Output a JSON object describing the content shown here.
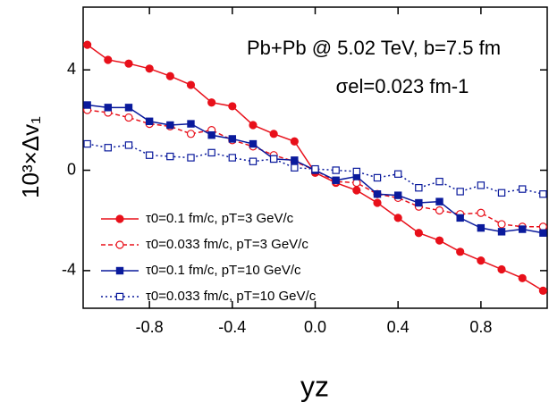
{
  "chart_data": {
    "type": "line",
    "annotations": [
      "Pb+Pb @ 5.02 TeV, b=7.5 fm",
      "σel=0.023 fm-1"
    ],
    "x_label": "yz",
    "y_label": "10³×Δv₁",
    "x": [
      -1.1,
      -1.0,
      -0.9,
      -0.8,
      -0.7,
      -0.6,
      -0.5,
      -0.4,
      -0.3,
      -0.2,
      -0.1,
      0.0,
      0.1,
      0.2,
      0.3,
      0.4,
      0.5,
      0.6,
      0.7,
      0.8,
      0.9,
      1.0,
      1.1
    ],
    "series": [
      {
        "name": "τ0=0.1 fm/c, pT=3 GeV/c",
        "color": "#e8101a",
        "marker": "filled-circle",
        "dash": "solid",
        "values": [
          5.0,
          4.4,
          4.25,
          4.05,
          3.75,
          3.4,
          2.7,
          2.55,
          1.8,
          1.45,
          1.15,
          -0.1,
          -0.5,
          -0.8,
          -1.3,
          -1.9,
          -2.5,
          -2.8,
          -3.25,
          -3.6,
          -3.95,
          -4.3,
          -4.8
        ]
      },
      {
        "name": "τ0=0.033 fm/c, pT=3 GeV/c",
        "color": "#e8101a",
        "marker": "open-circle",
        "dash": "dashed",
        "values": [
          2.4,
          2.3,
          2.1,
          1.85,
          1.75,
          1.45,
          1.6,
          1.2,
          0.95,
          0.6,
          0.35,
          0.0,
          -0.45,
          -0.5,
          -0.95,
          -1.1,
          -1.45,
          -1.6,
          -1.75,
          -1.7,
          -2.15,
          -2.25,
          -2.25
        ]
      },
      {
        "name": "τ0=0.1 fm/c, pT=10 GeV/c",
        "color": "#0a1a9c",
        "marker": "filled-square",
        "dash": "solid",
        "values": [
          2.6,
          2.5,
          2.5,
          1.95,
          1.8,
          1.85,
          1.4,
          1.25,
          1.05,
          0.45,
          0.4,
          0.0,
          -0.4,
          -0.25,
          -0.95,
          -1.0,
          -1.3,
          -1.25,
          -1.9,
          -2.3,
          -2.45,
          -2.35,
          -2.5
        ]
      },
      {
        "name": "τ0=0.033 fm/c, pT=10 GeV/c",
        "color": "#0a1a9c",
        "marker": "open-square",
        "dash": "dotted",
        "values": [
          1.05,
          0.9,
          1.0,
          0.6,
          0.55,
          0.5,
          0.7,
          0.5,
          0.35,
          0.45,
          0.1,
          0.05,
          0.0,
          -0.05,
          -0.3,
          -0.15,
          -0.7,
          -0.45,
          -0.85,
          -0.6,
          -0.9,
          -0.75,
          -0.95
        ]
      }
    ],
    "xlim": [
      -1.12,
      1.12
    ],
    "ylim": [
      -5.5,
      6.5
    ],
    "xticks": [
      -0.8,
      -0.4,
      {
        "value": 0,
        "label": "0.0"
      },
      0.4,
      0.8
    ],
    "yticks": [
      -4,
      0,
      4
    ],
    "legend": "left",
    "grid": false
  }
}
